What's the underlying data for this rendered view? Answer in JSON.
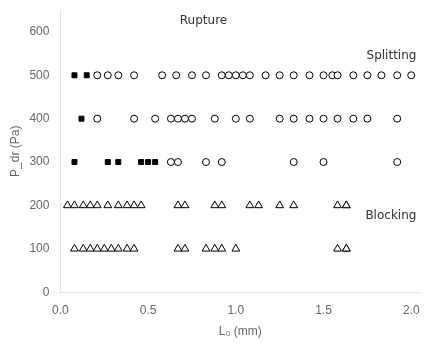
{
  "chart_data": {
    "type": "scatter",
    "xlabel": "L₀ (mm)",
    "ylabel": "P_dr (Pa)",
    "xlim": [
      0,
      2.05
    ],
    "ylim": [
      0,
      650
    ],
    "xticks": [
      {
        "value": 0,
        "label": "0.0"
      },
      0.5,
      {
        "value": 1.0,
        "label": "1.0"
      },
      1.5,
      {
        "value": 2.0,
        "label": "2.0"
      }
    ],
    "yticks": [
      0,
      100,
      200,
      300,
      400,
      500,
      600
    ],
    "grid": false,
    "annotations": [
      "Rupture",
      "Splitting",
      "Blocking"
    ],
    "series": [
      {
        "marker": "open circle",
        "color": "#000000",
        "x": [
          0.21,
          0.27,
          0.33,
          0.42,
          0.58,
          0.66,
          0.75,
          0.83,
          0.92,
          0.96,
          1.0,
          1.04,
          1.08,
          1.17,
          1.25,
          1.33,
          1.42,
          1.5,
          1.55,
          1.58,
          1.67,
          1.75,
          1.83,
          1.92,
          2.0
        ],
        "values": [
          500,
          500,
          500,
          500,
          500,
          500,
          500,
          500,
          500,
          500,
          500,
          500,
          500,
          500,
          500,
          500,
          500,
          500,
          500,
          500,
          500,
          500,
          500,
          500,
          500
        ]
      },
      {
        "marker": "open circle",
        "color": "#000000",
        "x": [
          0.21,
          0.42,
          0.54,
          0.63,
          0.67,
          0.71,
          0.75,
          0.88,
          1.0,
          1.08,
          1.25,
          1.33,
          1.42,
          1.5,
          1.58,
          1.67,
          1.75,
          1.92
        ],
        "values": [
          400,
          400,
          400,
          400,
          400,
          400,
          400,
          400,
          400,
          400,
          400,
          400,
          400,
          400,
          400,
          400,
          400,
          400
        ]
      },
      {
        "marker": "open circle",
        "color": "#000000",
        "x": [
          0.63,
          0.67,
          0.83,
          0.92,
          1.33,
          1.5,
          1.92
        ],
        "values": [
          300,
          300,
          300,
          300,
          300,
          300,
          300
        ]
      },
      {
        "marker": "filled square",
        "color": "#000000",
        "x": [
          0.08,
          0.15,
          0.21
        ],
        "values": [
          500,
          500,
          500
        ]
      },
      {
        "marker": "filled square",
        "color": "#000000",
        "x": [
          0.12,
          0.21
        ],
        "values": [
          400,
          400
        ]
      },
      {
        "marker": "filled square",
        "color": "#000000",
        "x": [
          0.08,
          0.27,
          0.33,
          0.46,
          0.5,
          0.54
        ],
        "values": [
          300,
          300,
          300,
          300,
          300,
          300
        ]
      },
      {
        "marker": "open triangle",
        "color": "#000000",
        "x": [
          0.04,
          0.08,
          0.13,
          0.17,
          0.21,
          0.27,
          0.33,
          0.38,
          0.42,
          0.46,
          0.67,
          0.71,
          0.88,
          0.92,
          1.08,
          1.13,
          1.25,
          1.33,
          1.58,
          1.63
        ],
        "values": [
          200,
          200,
          200,
          200,
          200,
          200,
          200,
          200,
          200,
          200,
          200,
          200,
          200,
          200,
          200,
          200,
          200,
          200,
          200,
          200
        ]
      },
      {
        "marker": "open triangle",
        "color": "#000000",
        "x": [
          0.08,
          0.13,
          0.17,
          0.21,
          0.25,
          0.29,
          0.33,
          0.38,
          0.42,
          0.67,
          0.71,
          0.83,
          0.88,
          0.92,
          1.0,
          1.58,
          1.63
        ],
        "values": [
          100,
          100,
          100,
          100,
          100,
          100,
          100,
          100,
          100,
          100,
          100,
          100,
          100,
          100,
          100,
          100,
          100
        ]
      },
      {
        "marker": "open triangle",
        "color": "#000000",
        "x": [
          1.63
        ],
        "values": [
          200
        ]
      },
      {
        "marker": "open triangle",
        "color": "#000000",
        "x": [
          1.63
        ],
        "values": [
          100
        ]
      }
    ]
  }
}
